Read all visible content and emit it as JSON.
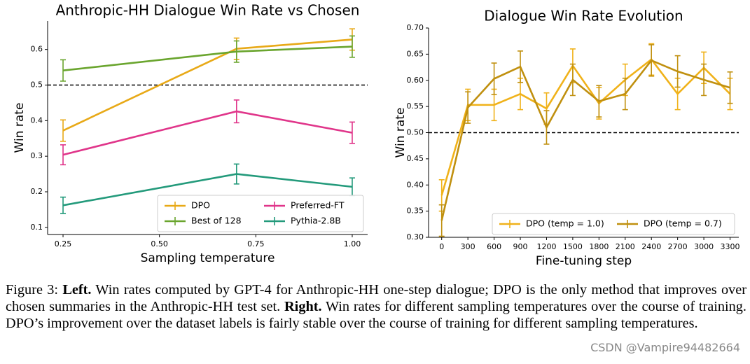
{
  "chart_data": [
    {
      "type": "line",
      "title": "Anthropic-HH Dialogue Win Rate vs Chosen",
      "xlabel": "Sampling temperature",
      "ylabel": "Win rate",
      "x": [
        0.25,
        0.7,
        1.0
      ],
      "xlim": [
        0.21,
        1.04
      ],
      "xticks": [
        0.25,
        {
          "value": 0.5,
          "label": "0.50"
        },
        0.75,
        {
          "value": 1.0,
          "label": "1.00"
        }
      ],
      "ylim": [
        0.08,
        0.68
      ],
      "yticks": [
        0.1,
        0.2,
        0.3,
        0.4,
        0.5,
        0.6
      ],
      "reference_line": 0.5,
      "legend": "lower right",
      "legend_columns": 2,
      "series": [
        {
          "name": "DPO",
          "color": "#e8a917",
          "values": [
            0.372,
            0.602,
            0.628
          ],
          "errors": [
            0.03,
            0.03,
            0.03
          ]
        },
        {
          "name": "Best of 128",
          "color": "#6aa52e",
          "values": [
            0.541,
            0.594,
            0.608
          ],
          "errors": [
            0.03,
            0.03,
            0.03
          ]
        },
        {
          "name": "Preferred-FT",
          "color": "#e0358a",
          "values": [
            0.304,
            0.426,
            0.366
          ],
          "errors": [
            0.028,
            0.032,
            0.03
          ]
        },
        {
          "name": "Pythia-2.8B",
          "color": "#239a7b",
          "values": [
            0.162,
            0.25,
            0.214
          ],
          "errors": [
            0.023,
            0.028,
            0.025
          ]
        }
      ]
    },
    {
      "type": "line",
      "title": "Dialogue Win Rate Evolution",
      "xlabel": "Fine-tuning step",
      "ylabel": "Win rate",
      "x": [
        0,
        300,
        600,
        900,
        1200,
        1500,
        1800,
        2100,
        2400,
        2700,
        3000,
        3300
      ],
      "xlim": [
        -150,
        3400
      ],
      "xticks": [
        0,
        300,
        600,
        900,
        1200,
        1500,
        1800,
        2100,
        2400,
        2700,
        3000,
        3300
      ],
      "ylim": [
        0.3,
        0.7
      ],
      "yticks": [
        {
          "value": 0.3,
          "label": "0.30"
        },
        0.35,
        {
          "value": 0.4,
          "label": "0.40"
        },
        0.45,
        {
          "value": 0.5,
          "label": "0.50"
        },
        0.55,
        {
          "value": 0.6,
          "label": "0.60"
        },
        0.65,
        {
          "value": 0.7,
          "label": "0.70"
        }
      ],
      "reference_line": 0.5,
      "legend": "lower right",
      "legend_columns": 2,
      "series": [
        {
          "name": "DPO (temp = 1.0)",
          "color": "#f0b21a",
          "values": [
            0.38,
            0.553,
            0.553,
            0.574,
            0.546,
            0.628,
            0.556,
            0.601,
            0.64,
            0.574,
            0.624,
            0.574
          ],
          "errors": [
            0.03,
            0.03,
            0.03,
            0.03,
            0.03,
            0.032,
            0.03,
            0.03,
            0.03,
            0.03,
            0.03,
            0.03
          ]
        },
        {
          "name": "DPO (temp = 0.7)",
          "color": "#c0900f",
          "values": [
            0.332,
            0.548,
            0.603,
            0.626,
            0.51,
            0.601,
            0.56,
            0.574,
            0.638,
            0.617,
            0.601,
            0.586
          ],
          "errors": [
            0.03,
            0.03,
            0.03,
            0.03,
            0.032,
            0.03,
            0.03,
            0.03,
            0.03,
            0.03,
            0.03,
            0.03
          ]
        }
      ]
    }
  ],
  "caption": {
    "label": "Figure 3:",
    "left_heading": "Left.",
    "left_text": "Win rates computed by GPT-4 for Anthropic-HH one-step dialogue; DPO is the only method that improves over chosen summaries in the Anthropic-HH test set.",
    "right_heading": "Right.",
    "right_text": "Win rates for different sampling temperatures over the course of training. DPO’s improvement over the dataset labels is fairly stable over the course of training for different sampling temperatures."
  },
  "watermark": "CSDN @Vampire94482664"
}
